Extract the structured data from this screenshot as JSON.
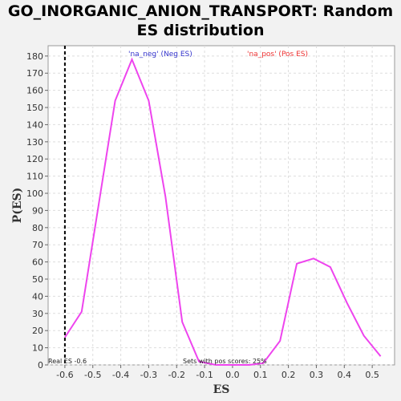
{
  "chart_data": {
    "type": "line",
    "title_line1": "GO_INORGANIC_ANION_TRANSPORT: Random",
    "title_line2": "ES distribution",
    "xlabel": "ES",
    "ylabel": "P(ES)",
    "xlim": [
      -0.66,
      0.58
    ],
    "ylim": [
      0,
      186
    ],
    "x_ticks": [
      -0.6,
      -0.5,
      -0.4,
      -0.3,
      -0.2,
      -0.1,
      0.0,
      0.1,
      0.2,
      0.3,
      0.4,
      0.5
    ],
    "y_ticks": [
      0,
      10,
      20,
      30,
      40,
      50,
      60,
      70,
      80,
      90,
      100,
      110,
      120,
      130,
      140,
      150,
      160,
      170,
      180
    ],
    "grid": true,
    "series": [
      {
        "color": "#ee44ee",
        "x": [
          -0.6,
          -0.54,
          -0.42,
          -0.36,
          -0.3,
          -0.24,
          -0.18,
          -0.12,
          -0.06,
          0.0,
          0.06,
          0.11,
          0.17,
          0.23,
          0.29,
          0.35,
          0.41,
          0.47,
          0.53
        ],
        "y": [
          16,
          31,
          154,
          178,
          154,
          98,
          25,
          2,
          0,
          0,
          0,
          1,
          14,
          59,
          62,
          57,
          36,
          17,
          5
        ]
      }
    ],
    "real_es": -0.6,
    "legend": [
      {
        "label": "'na_neg' (Neg ES)",
        "color": "#3333cc"
      },
      {
        "label": "'na_pos' (Pos ES)",
        "color": "#ee3333"
      }
    ],
    "annotations": {
      "real_es": "Real ES -0.6",
      "pos_scores": "Sets with pos scores: 25%"
    }
  }
}
